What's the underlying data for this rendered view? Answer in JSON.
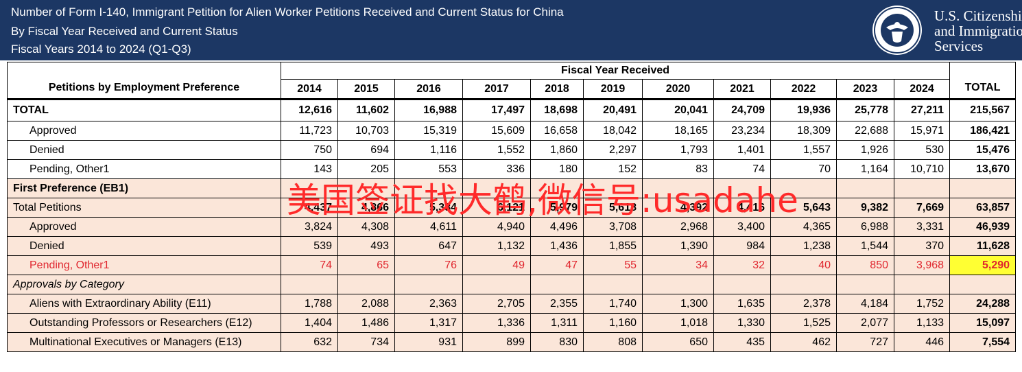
{
  "header": {
    "title_line1": "Number of Form I-140, Immigrant Petition for Alien Worker Petitions Received and Current Status for China",
    "title_line2": "By Fiscal Year Received and Current Status",
    "title_line3": "Fiscal Years 2014 to 2024 (Q1-Q3)",
    "agency_line1": "U.S. Citizenship",
    "agency_line2": "and Immigration",
    "agency_line3": "Services",
    "seal_icon": "dhs-seal-icon"
  },
  "table": {
    "label_header": "Petitions by Employment Preference",
    "group_header": "Fiscal Year Received",
    "years": [
      "2014",
      "2015",
      "2016",
      "2017",
      "2018",
      "2019",
      "2020",
      "2021",
      "2022",
      "2023",
      "2024"
    ],
    "total_header": "TOTAL",
    "rows": [
      {
        "label": "TOTAL",
        "values": [
          "12,616",
          "11,602",
          "16,988",
          "17,497",
          "18,698",
          "20,491",
          "20,041",
          "24,709",
          "19,936",
          "25,778",
          "27,211"
        ],
        "total": "215,567"
      },
      {
        "label": "Approved",
        "values": [
          "11,723",
          "10,703",
          "15,319",
          "15,609",
          "16,658",
          "18,042",
          "18,165",
          "23,234",
          "18,309",
          "22,688",
          "15,971"
        ],
        "total": "186,421"
      },
      {
        "label": "Denied",
        "values": [
          "750",
          "694",
          "1,116",
          "1,552",
          "1,860",
          "2,297",
          "1,793",
          "1,401",
          "1,557",
          "1,926",
          "530"
        ],
        "total": "15,476"
      },
      {
        "label": "Pending, Other1",
        "values": [
          "143",
          "205",
          "553",
          "336",
          "180",
          "152",
          "83",
          "74",
          "70",
          "1,164",
          "10,710"
        ],
        "total": "13,670"
      },
      {
        "label": "First Preference (EB1)"
      },
      {
        "label": "Total Petitions",
        "values": [
          "4,437",
          "4,866",
          "5,334",
          "6,121",
          "5,979",
          "5,618",
          "4,392",
          "4,416",
          "5,643",
          "9,382",
          "7,669"
        ],
        "total": "63,857"
      },
      {
        "label": "Approved",
        "values": [
          "3,824",
          "4,308",
          "4,611",
          "4,940",
          "4,496",
          "3,708",
          "2,968",
          "3,400",
          "4,365",
          "6,988",
          "3,331"
        ],
        "total": "46,939"
      },
      {
        "label": "Denied",
        "values": [
          "539",
          "493",
          "647",
          "1,132",
          "1,436",
          "1,855",
          "1,390",
          "984",
          "1,238",
          "1,544",
          "370"
        ],
        "total": "11,628"
      },
      {
        "label": "Pending, Other1",
        "values": [
          "74",
          "65",
          "76",
          "49",
          "47",
          "55",
          "34",
          "32",
          "40",
          "850",
          "3,968"
        ],
        "total": "5,290"
      },
      {
        "label": "Approvals by Category"
      },
      {
        "label": "Aliens with Extraordinary Ability (E11)",
        "values": [
          "1,788",
          "2,088",
          "2,363",
          "2,705",
          "2,355",
          "1,740",
          "1,300",
          "1,635",
          "2,378",
          "4,184",
          "1,752"
        ],
        "total": "24,288"
      },
      {
        "label": "Outstanding Professors or Researchers (E12)",
        "values": [
          "1,404",
          "1,486",
          "1,317",
          "1,336",
          "1,311",
          "1,160",
          "1,018",
          "1,330",
          "1,525",
          "2,077",
          "1,133"
        ],
        "total": "15,097"
      },
      {
        "label": "Multinational Executives or Managers (E13)",
        "values": [
          "632",
          "734",
          "931",
          "899",
          "830",
          "808",
          "650",
          "435",
          "462",
          "727",
          "446"
        ],
        "total": "7,554"
      }
    ]
  },
  "watermark": "美国签证找大鹤,微信号:usadahe",
  "colors": {
    "header_bg": "#1c3764",
    "peach": "#fbe6d9",
    "red": "#e0262e",
    "highlight": "#ffff33"
  }
}
